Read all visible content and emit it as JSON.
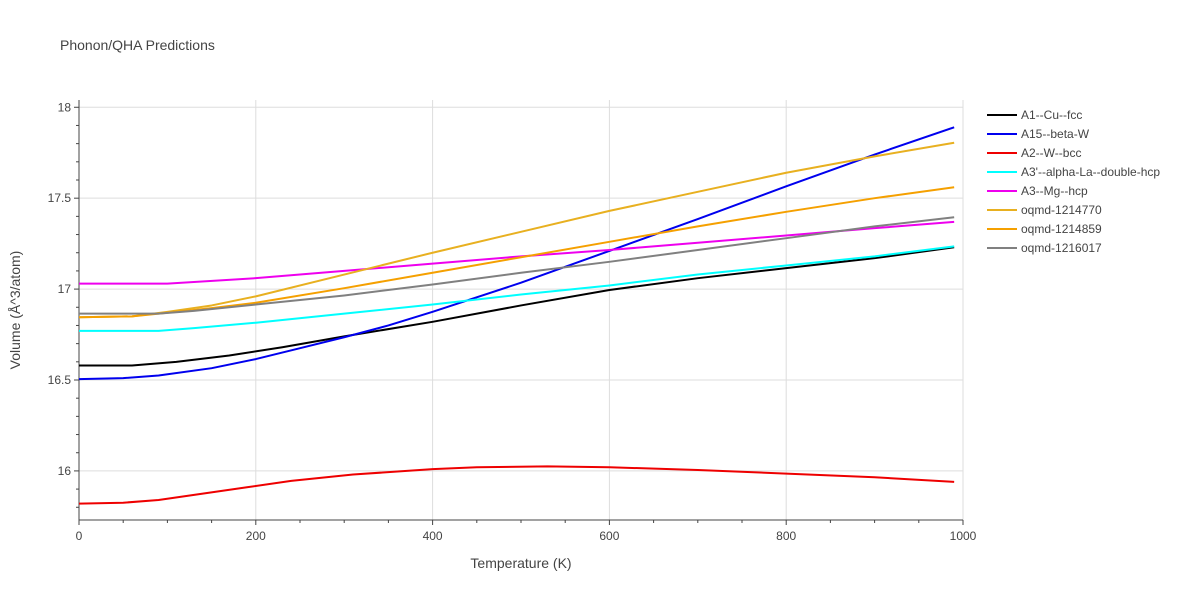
{
  "chart_data": {
    "type": "line",
    "title": "Phonon/QHA Predictions",
    "xlabel": "Temperature (K)",
    "ylabel": "Volume (Å^3/atom)",
    "xlim": [
      0,
      1000
    ],
    "ylim": [
      15.73,
      18.04
    ],
    "xticks": [
      0,
      200,
      400,
      600,
      800,
      1000
    ],
    "yticks": [
      16,
      16.5,
      17,
      17.5,
      18
    ],
    "xtick_labels": [
      "0",
      "200",
      "400",
      "600",
      "800",
      "1000"
    ],
    "ytick_labels": [
      "16",
      "16.5",
      "17",
      "17.5",
      "18"
    ],
    "grid": true,
    "legend_position": "right",
    "series": [
      {
        "name": "A1--Cu--fcc",
        "color": "#000000",
        "x": [
          0,
          60,
          110,
          170,
          230,
          300,
          400,
          500,
          600,
          700,
          800,
          900,
          990
        ],
        "y": [
          16.58,
          16.58,
          16.6,
          16.635,
          16.68,
          16.74,
          16.82,
          16.91,
          16.995,
          17.06,
          17.115,
          17.17,
          17.23
        ]
      },
      {
        "name": "A15--beta-W",
        "color": "#0000ee",
        "x": [
          0,
          50,
          90,
          150,
          200,
          250,
          300,
          350,
          400,
          500,
          600,
          700,
          800,
          900,
          990
        ],
        "y": [
          16.505,
          16.51,
          16.525,
          16.565,
          16.615,
          16.675,
          16.735,
          16.8,
          16.875,
          17.035,
          17.21,
          17.385,
          17.565,
          17.74,
          17.89
        ]
      },
      {
        "name": "A2--W--bcc",
        "color": "#ee0000",
        "x": [
          0,
          50,
          90,
          140,
          190,
          240,
          310,
          400,
          450,
          530,
          600,
          700,
          800,
          900,
          990
        ],
        "y": [
          15.82,
          15.825,
          15.84,
          15.875,
          15.91,
          15.945,
          15.98,
          16.01,
          16.02,
          16.025,
          16.02,
          16.005,
          15.985,
          15.965,
          15.94
        ]
      },
      {
        "name": "A3'--alpha-La--double-hcp",
        "color": "#00ffff",
        "x": [
          0,
          90,
          130,
          200,
          300,
          400,
          500,
          600,
          700,
          800,
          900,
          990
        ],
        "y": [
          16.77,
          16.77,
          16.785,
          16.815,
          16.865,
          16.915,
          16.97,
          17.02,
          17.08,
          17.13,
          17.18,
          17.235
        ]
      },
      {
        "name": "A3--Mg--hcp",
        "color": "#ee00ee",
        "x": [
          0,
          100,
          200,
          300,
          400,
          500,
          600,
          700,
          800,
          900,
          990
        ],
        "y": [
          17.03,
          17.03,
          17.06,
          17.1,
          17.14,
          17.18,
          17.215,
          17.255,
          17.295,
          17.335,
          17.37
        ]
      },
      {
        "name": "oqmd-1214770",
        "color": "#e8b020",
        "x": [
          0,
          60,
          100,
          150,
          200,
          300,
          400,
          500,
          600,
          700,
          800,
          900,
          990
        ],
        "y": [
          16.845,
          16.85,
          16.875,
          16.91,
          16.96,
          17.08,
          17.2,
          17.315,
          17.43,
          17.535,
          17.64,
          17.73,
          17.805
        ]
      },
      {
        "name": "oqmd-1214859",
        "color": "#f5a000",
        "x": [
          0,
          60,
          100,
          150,
          200,
          300,
          400,
          500,
          600,
          700,
          800,
          900,
          990
        ],
        "y": [
          16.845,
          16.85,
          16.87,
          16.895,
          16.925,
          17.005,
          17.09,
          17.175,
          17.26,
          17.345,
          17.425,
          17.5,
          17.56
        ]
      },
      {
        "name": "oqmd-1216017",
        "color": "#808080",
        "x": [
          0,
          90,
          130,
          200,
          300,
          400,
          500,
          600,
          700,
          800,
          900,
          990
        ],
        "y": [
          16.865,
          16.865,
          16.88,
          16.915,
          16.965,
          17.025,
          17.09,
          17.15,
          17.215,
          17.28,
          17.345,
          17.395
        ]
      }
    ]
  }
}
